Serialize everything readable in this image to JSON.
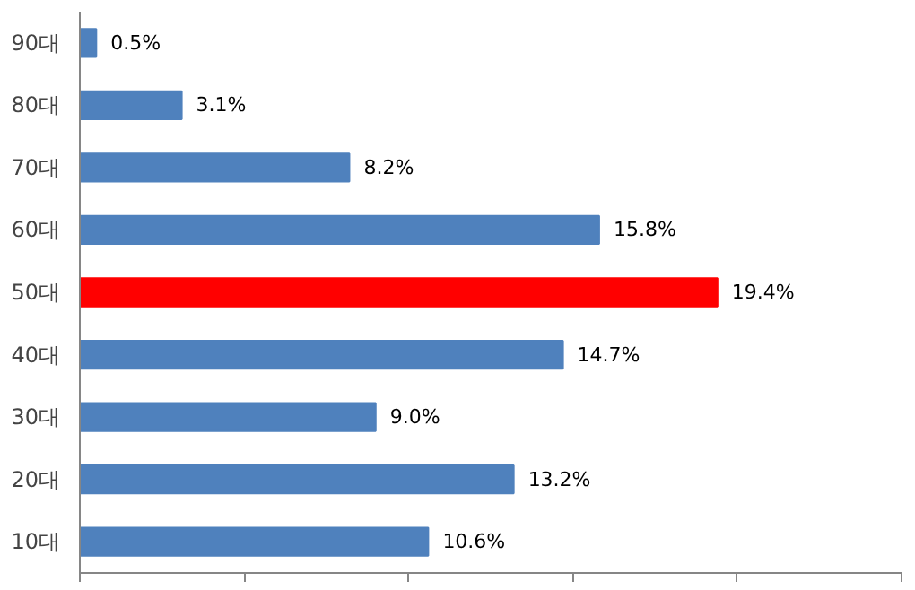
{
  "chart_data": {
    "type": "bar",
    "orientation": "horizontal",
    "categories": [
      "90대",
      "80대",
      "70대",
      "60대",
      "50대",
      "40대",
      "30대",
      "20대",
      "10대"
    ],
    "values": [
      0.5,
      3.1,
      8.2,
      15.8,
      19.4,
      14.7,
      9.0,
      13.2,
      10.6
    ],
    "colors": [
      "#4f81bd",
      "#4f81bd",
      "#4f81bd",
      "#4f81bd",
      "#ff0000",
      "#4f81bd",
      "#4f81bd",
      "#4f81bd",
      "#4f81bd"
    ],
    "value_labels": [
      "0.5%",
      "3.1%",
      "8.2%",
      "15.8%",
      "19.4%",
      "14.7%",
      "9.0%",
      "13.2%",
      "10.6%"
    ],
    "xlim": [
      0,
      25
    ],
    "xticks": [
      {
        "value": 0,
        "label": null
      },
      {
        "value": 5,
        "label": null
      },
      {
        "value": 10,
        "label": null
      },
      {
        "value": 15,
        "label": null
      },
      {
        "value": 20,
        "label": null
      },
      {
        "value": 25,
        "label": null
      }
    ],
    "tick_labels": "y",
    "grid": false
  }
}
